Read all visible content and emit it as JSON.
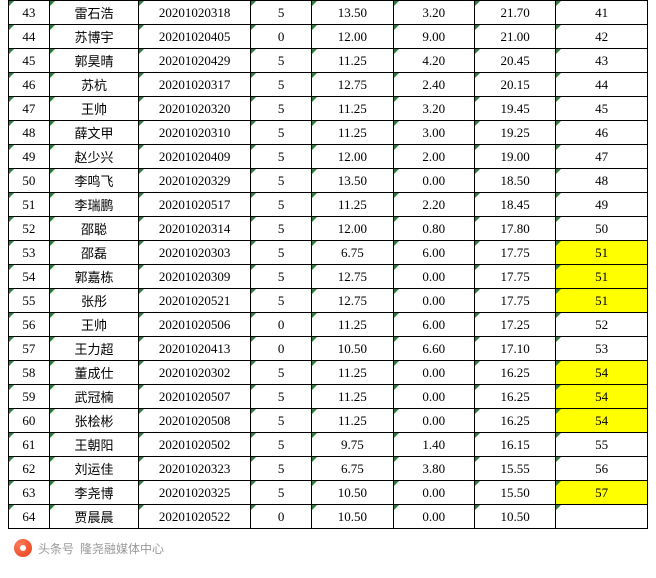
{
  "column_widths": [
    "col-idx",
    "col-name",
    "col-id",
    "col-a",
    "col-b",
    "col-c",
    "col-d",
    "col-rank"
  ],
  "highlight_color": "#ffff00",
  "triangle_color": "#2d7f3c",
  "border_color": "#000000",
  "font_family": "SimSun",
  "font_size": 13,
  "rows": [
    {
      "idx": "43",
      "name": "雷石浩",
      "id": "20201020318",
      "a": "5",
      "b": "13.50",
      "c": "3.20",
      "d": "21.70",
      "rank": "41",
      "hl": false
    },
    {
      "idx": "44",
      "name": "苏博宇",
      "id": "20201020405",
      "a": "0",
      "b": "12.00",
      "c": "9.00",
      "d": "21.00",
      "rank": "42",
      "hl": false
    },
    {
      "idx": "45",
      "name": "郭昊晴",
      "id": "20201020429",
      "a": "5",
      "b": "11.25",
      "c": "4.20",
      "d": "20.45",
      "rank": "43",
      "hl": false
    },
    {
      "idx": "46",
      "name": "苏杭",
      "id": "20201020317",
      "a": "5",
      "b": "12.75",
      "c": "2.40",
      "d": "20.15",
      "rank": "44",
      "hl": false
    },
    {
      "idx": "47",
      "name": "王帅",
      "id": "20201020320",
      "a": "5",
      "b": "11.25",
      "c": "3.20",
      "d": "19.45",
      "rank": "45",
      "hl": false
    },
    {
      "idx": "48",
      "name": "薛文甲",
      "id": "20201020310",
      "a": "5",
      "b": "11.25",
      "c": "3.00",
      "d": "19.25",
      "rank": "46",
      "hl": false
    },
    {
      "idx": "49",
      "name": "赵少兴",
      "id": "20201020409",
      "a": "5",
      "b": "12.00",
      "c": "2.00",
      "d": "19.00",
      "rank": "47",
      "hl": false
    },
    {
      "idx": "50",
      "name": "李鸣飞",
      "id": "20201020329",
      "a": "5",
      "b": "13.50",
      "c": "0.00",
      "d": "18.50",
      "rank": "48",
      "hl": false
    },
    {
      "idx": "51",
      "name": "李瑞鹏",
      "id": "20201020517",
      "a": "5",
      "b": "11.25",
      "c": "2.20",
      "d": "18.45",
      "rank": "49",
      "hl": false
    },
    {
      "idx": "52",
      "name": "邵聪",
      "id": "20201020314",
      "a": "5",
      "b": "12.00",
      "c": "0.80",
      "d": "17.80",
      "rank": "50",
      "hl": false
    },
    {
      "idx": "53",
      "name": "邵磊",
      "id": "20201020303",
      "a": "5",
      "b": "6.75",
      "c": "6.00",
      "d": "17.75",
      "rank": "51",
      "hl": true
    },
    {
      "idx": "54",
      "name": "郭嘉栋",
      "id": "20201020309",
      "a": "5",
      "b": "12.75",
      "c": "0.00",
      "d": "17.75",
      "rank": "51",
      "hl": true
    },
    {
      "idx": "55",
      "name": "张彤",
      "id": "20201020521",
      "a": "5",
      "b": "12.75",
      "c": "0.00",
      "d": "17.75",
      "rank": "51",
      "hl": true
    },
    {
      "idx": "56",
      "name": "王帅",
      "id": "20201020506",
      "a": "0",
      "b": "11.25",
      "c": "6.00",
      "d": "17.25",
      "rank": "52",
      "hl": false
    },
    {
      "idx": "57",
      "name": "王力超",
      "id": "20201020413",
      "a": "0",
      "b": "10.50",
      "c": "6.60",
      "d": "17.10",
      "rank": "53",
      "hl": false
    },
    {
      "idx": "58",
      "name": "董成仕",
      "id": "20201020302",
      "a": "5",
      "b": "11.25",
      "c": "0.00",
      "d": "16.25",
      "rank": "54",
      "hl": true
    },
    {
      "idx": "59",
      "name": "武冠楠",
      "id": "20201020507",
      "a": "5",
      "b": "11.25",
      "c": "0.00",
      "d": "16.25",
      "rank": "54",
      "hl": true
    },
    {
      "idx": "60",
      "name": "张桧彬",
      "id": "20201020508",
      "a": "5",
      "b": "11.25",
      "c": "0.00",
      "d": "16.25",
      "rank": "54",
      "hl": true
    },
    {
      "idx": "61",
      "name": "王朝阳",
      "id": "20201020502",
      "a": "5",
      "b": "9.75",
      "c": "1.40",
      "d": "16.15",
      "rank": "55",
      "hl": false
    },
    {
      "idx": "62",
      "name": "刘运佳",
      "id": "20201020323",
      "a": "5",
      "b": "6.75",
      "c": "3.80",
      "d": "15.55",
      "rank": "56",
      "hl": false
    },
    {
      "idx": "63",
      "name": "李尧博",
      "id": "20201020325",
      "a": "5",
      "b": "10.50",
      "c": "0.00",
      "d": "15.50",
      "rank": "57",
      "hl": true
    },
    {
      "idx": "64",
      "name": "贾晨晨",
      "id": "20201020522",
      "a": "0",
      "b": "10.50",
      "c": "0.00",
      "d": "10.50",
      "rank": "",
      "hl": false
    }
  ],
  "footer": {
    "source": "头条号",
    "author": "隆尧融媒体中心"
  }
}
